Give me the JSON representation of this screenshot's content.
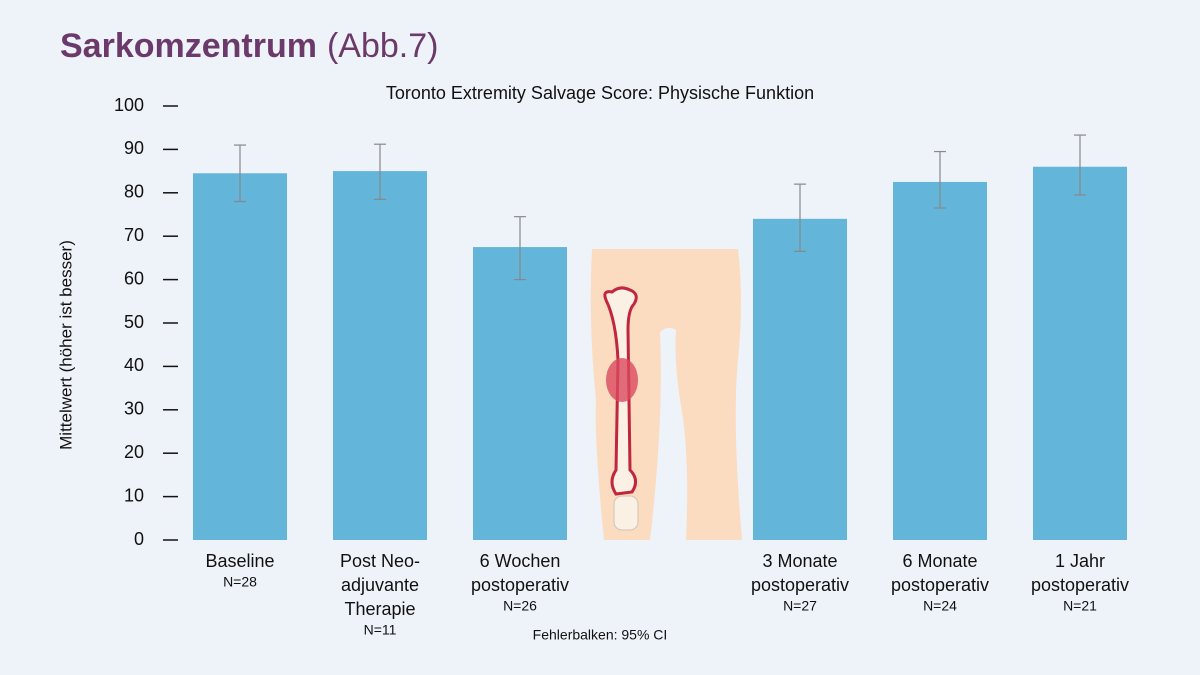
{
  "chart_data": {
    "type": "bar",
    "title": "Sarkomzentrum",
    "subtitle": "(Abb.7)",
    "chart_title": "Toronto Extremity Salvage Score: Physische Funktion",
    "y_label": "Mittelwert (höher ist besser)",
    "note": "Fehlerbalken: 95% CI",
    "categories": [
      [
        "Baseline"
      ],
      [
        "Post Neo-",
        "adjuvante",
        "Therapie"
      ],
      [
        "6 Wochen",
        "postoperativ"
      ],
      null,
      [
        "3 Monate",
        "postoperativ"
      ],
      [
        "6 Monate",
        "postoperativ"
      ],
      [
        "1 Jahr",
        "postoperativ"
      ]
    ],
    "n_labels": [
      "N=28",
      "N=11",
      "N=26",
      null,
      "N=27",
      "N=24",
      "N=21"
    ],
    "values": [
      84.5,
      85,
      67.5,
      null,
      74,
      82.5,
      86
    ],
    "ci_low": [
      78,
      78.5,
      60,
      null,
      66.5,
      76.5,
      79.5
    ],
    "ci_high": [
      91,
      91.2,
      74.5,
      null,
      82,
      89.5,
      93.3
    ],
    "color": "#63b5da",
    "ylim": [
      0,
      100
    ],
    "yticks": [
      0,
      10,
      20,
      30,
      40,
      50,
      60,
      70,
      80,
      90,
      100
    ],
    "grid": false
  }
}
